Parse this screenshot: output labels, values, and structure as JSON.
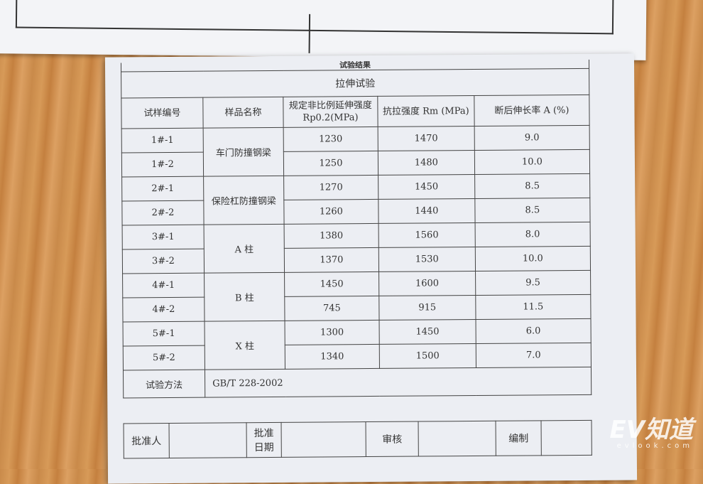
{
  "document": {
    "header_cut": "试验结果",
    "section_title": "拉伸试验",
    "columns": [
      "试样编号",
      "样品名称",
      "规定非比例延伸强度 Rp0.2(MPa)",
      "抗拉强度 Rm (MPa)",
      "断后伸长率 A (%)"
    ],
    "groups": [
      {
        "name": "车门防撞钢梁",
        "rows": [
          [
            "1#-1",
            "1230",
            "1470",
            "9.0"
          ],
          [
            "1#-2",
            "1250",
            "1480",
            "10.0"
          ]
        ]
      },
      {
        "name": "保险杠防撞钢梁",
        "rows": [
          [
            "2#-1",
            "1270",
            "1450",
            "8.5"
          ],
          [
            "2#-2",
            "1260",
            "1440",
            "8.5"
          ]
        ]
      },
      {
        "name": "A 柱",
        "rows": [
          [
            "3#-1",
            "1380",
            "1560",
            "8.0"
          ],
          [
            "3#-2",
            "1370",
            "1530",
            "10.0"
          ]
        ]
      },
      {
        "name": "B 柱",
        "rows": [
          [
            "4#-1",
            "1450",
            "1600",
            "9.5"
          ],
          [
            "4#-2",
            "745",
            "915",
            "11.5"
          ]
        ]
      },
      {
        "name": "X 柱",
        "rows": [
          [
            "5#-1",
            "1300",
            "1450",
            "6.0"
          ],
          [
            "5#-2",
            "1340",
            "1500",
            "7.0"
          ]
        ]
      }
    ],
    "method_label": "试验方法",
    "method_value": "GB/T 228-2002",
    "sign_labels": [
      "批准人",
      "批准日期",
      "审核",
      "编制"
    ]
  },
  "watermark": {
    "logo": "EV知道",
    "site": "evlook.com"
  }
}
